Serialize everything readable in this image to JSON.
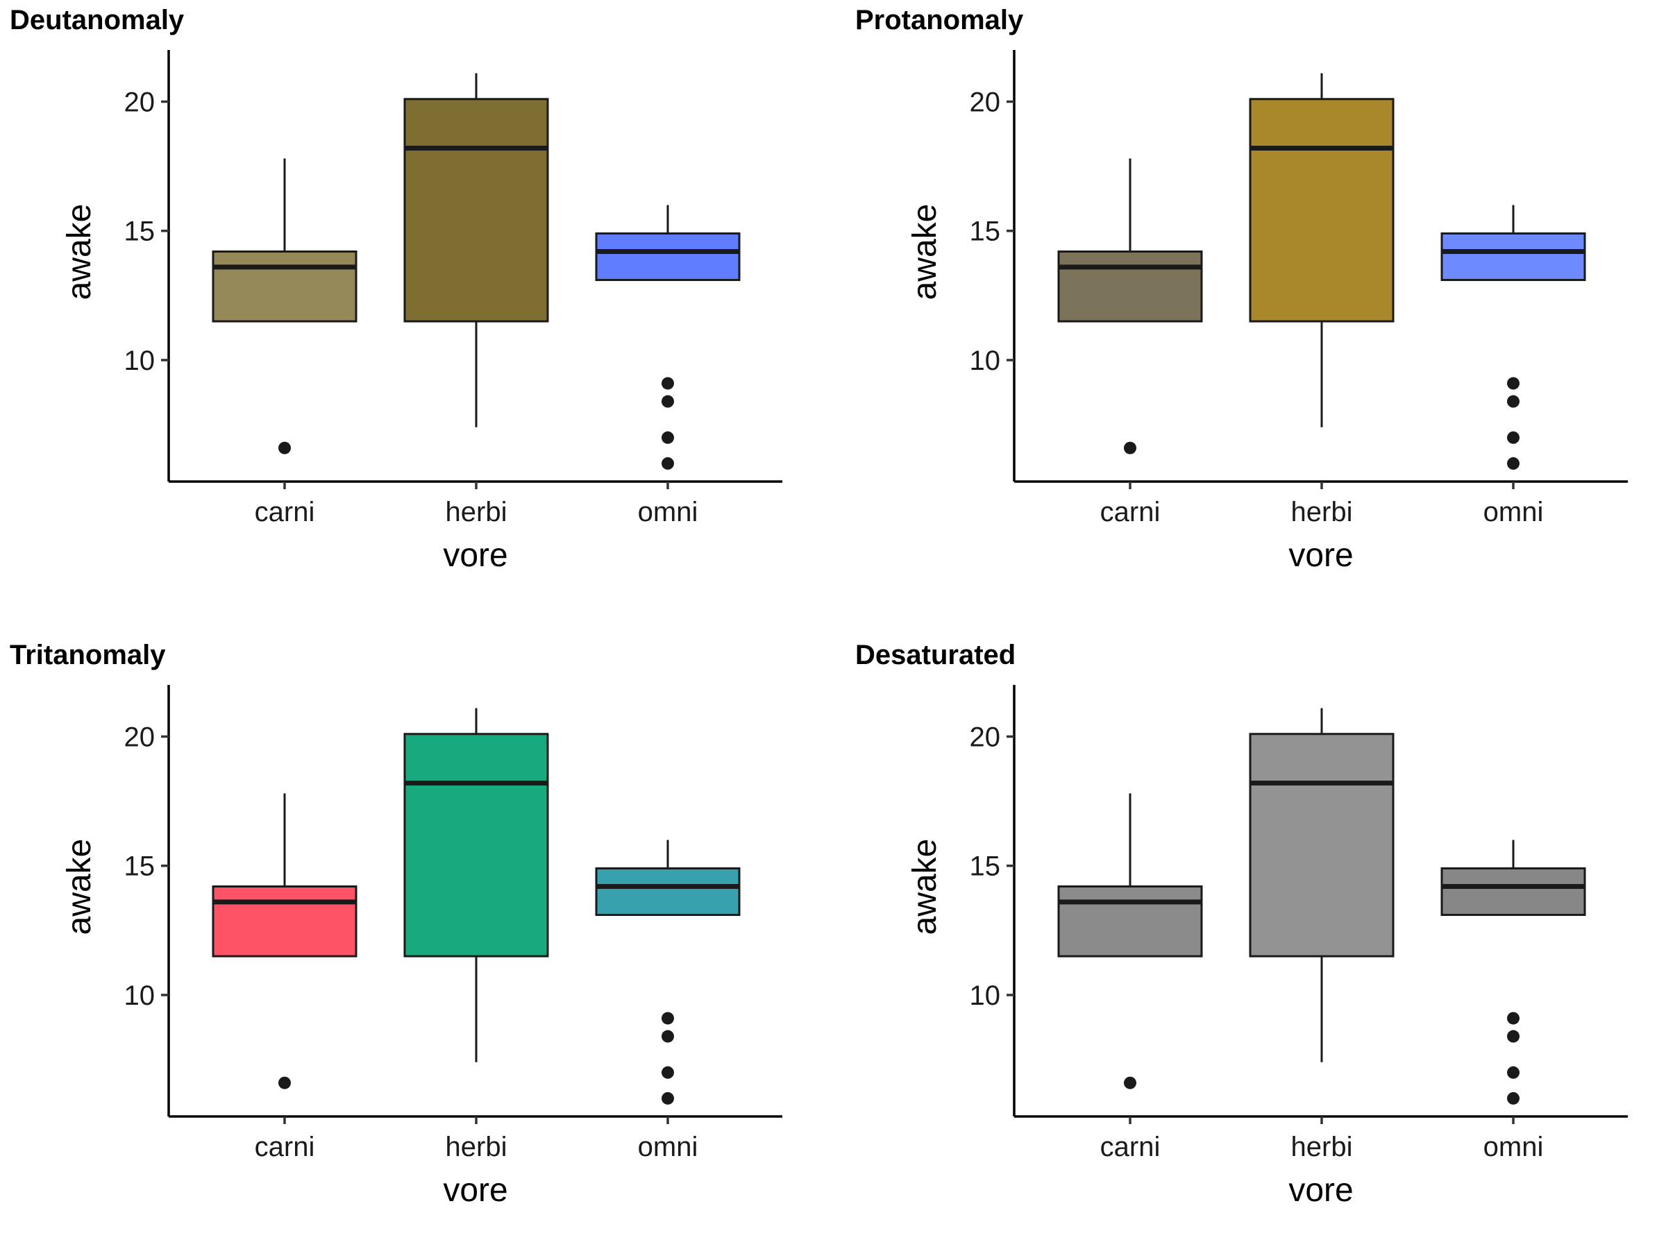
{
  "chart_data": [
    {
      "type": "box",
      "title": "Deutanomaly",
      "xlabel": "vore",
      "ylabel": "awake",
      "categories": [
        "carni",
        "herbi",
        "omni"
      ],
      "yticks": [
        10,
        15,
        20
      ],
      "ylim": [
        5.3,
        22.0
      ],
      "boxes": [
        {
          "category": "carni",
          "lower_whisker": 11.5,
          "q1": 11.5,
          "median": 13.6,
          "q3": 14.2,
          "upper_whisker": 17.8,
          "outliers": [
            6.6
          ],
          "fill": "#968959"
        },
        {
          "category": "herbi",
          "lower_whisker": 7.4,
          "q1": 11.5,
          "median": 18.2,
          "q3": 20.1,
          "upper_whisker": 21.1,
          "outliers": [],
          "fill": "#7f6e31"
        },
        {
          "category": "omni",
          "lower_whisker": 13.1,
          "q1": 13.1,
          "median": 14.2,
          "q3": 14.9,
          "upper_whisker": 16.0,
          "outliers": [
            9.1,
            8.4,
            7.0,
            6.0
          ],
          "fill": "#5f7dfe"
        }
      ]
    },
    {
      "type": "box",
      "title": "Protanomaly",
      "xlabel": "vore",
      "ylabel": "awake",
      "categories": [
        "carni",
        "herbi",
        "omni"
      ],
      "yticks": [
        10,
        15,
        20
      ],
      "ylim": [
        5.3,
        22.0
      ],
      "boxes": [
        {
          "category": "carni",
          "lower_whisker": 11.5,
          "q1": 11.5,
          "median": 13.6,
          "q3": 14.2,
          "upper_whisker": 17.8,
          "outliers": [
            6.6
          ],
          "fill": "#7b735a"
        },
        {
          "category": "herbi",
          "lower_whisker": 7.4,
          "q1": 11.5,
          "median": 18.2,
          "q3": 20.1,
          "upper_whisker": 21.1,
          "outliers": [],
          "fill": "#a8882b"
        },
        {
          "category": "omni",
          "lower_whisker": 13.1,
          "q1": 13.1,
          "median": 14.2,
          "q3": 14.9,
          "upper_whisker": 16.0,
          "outliers": [
            9.1,
            8.4,
            7.0,
            6.0
          ],
          "fill": "#6d8afe"
        }
      ]
    },
    {
      "type": "box",
      "title": "Tritanomaly",
      "xlabel": "vore",
      "ylabel": "awake",
      "categories": [
        "carni",
        "herbi",
        "omni"
      ],
      "yticks": [
        10,
        15,
        20
      ],
      "ylim": [
        5.3,
        22.0
      ],
      "boxes": [
        {
          "category": "carni",
          "lower_whisker": 11.5,
          "q1": 11.5,
          "median": 13.6,
          "q3": 14.2,
          "upper_whisker": 17.8,
          "outliers": [
            6.6
          ],
          "fill": "#fe5266"
        },
        {
          "category": "herbi",
          "lower_whisker": 7.4,
          "q1": 11.5,
          "median": 18.2,
          "q3": 20.1,
          "upper_whisker": 21.1,
          "outliers": [],
          "fill": "#18a97f"
        },
        {
          "category": "omni",
          "lower_whisker": 13.1,
          "q1": 13.1,
          "median": 14.2,
          "q3": 14.9,
          "upper_whisker": 16.0,
          "outliers": [
            9.1,
            8.4,
            7.0,
            6.0
          ],
          "fill": "#38a1ae"
        }
      ]
    },
    {
      "type": "box",
      "title": "Desaturated",
      "xlabel": "vore",
      "ylabel": "awake",
      "categories": [
        "carni",
        "herbi",
        "omni"
      ],
      "yticks": [
        10,
        15,
        20
      ],
      "ylim": [
        5.3,
        22.0
      ],
      "boxes": [
        {
          "category": "carni",
          "lower_whisker": 11.5,
          "q1": 11.5,
          "median": 13.6,
          "q3": 14.2,
          "upper_whisker": 17.8,
          "outliers": [
            6.6
          ],
          "fill": "#8b8b8b"
        },
        {
          "category": "herbi",
          "lower_whisker": 7.4,
          "q1": 11.5,
          "median": 18.2,
          "q3": 20.1,
          "upper_whisker": 21.1,
          "outliers": [],
          "fill": "#939393"
        },
        {
          "category": "omni",
          "lower_whisker": 13.1,
          "q1": 13.1,
          "median": 14.2,
          "q3": 14.9,
          "upper_whisker": 16.0,
          "outliers": [
            9.1,
            8.4,
            7.0,
            6.0
          ],
          "fill": "#878787"
        }
      ]
    }
  ]
}
